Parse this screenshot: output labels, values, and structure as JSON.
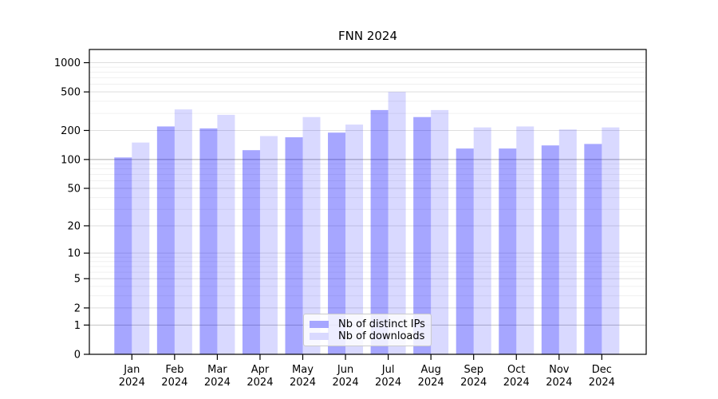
{
  "figure": {
    "title": "FNN 2024"
  },
  "chart_data": {
    "type": "bar",
    "title": "FNN 2024",
    "categories": [
      "Jan 2024",
      "Feb 2024",
      "Mar 2024",
      "Apr 2024",
      "May 2024",
      "Jun 2024",
      "Jul 2024",
      "Aug 2024",
      "Sep 2024",
      "Oct 2024",
      "Nov 2024",
      "Dec 2024"
    ],
    "series": [
      {
        "name": "Nb of distinct IPs",
        "color": "#a6a6ff",
        "bar_fill": "rgba(0,0,255,0.35)",
        "values": [
          105,
          220,
          210,
          125,
          170,
          190,
          325,
          275,
          130,
          130,
          140,
          145
        ]
      },
      {
        "name": "Nb of downloads",
        "color": "#d9d9ff",
        "bar_fill": "rgba(0,0,255,0.15)",
        "values": [
          150,
          330,
          290,
          175,
          275,
          230,
          500,
          325,
          215,
          220,
          205,
          215
        ]
      }
    ],
    "yscale": "symlog",
    "yticks": [
      0,
      1,
      2,
      5,
      10,
      20,
      50,
      100,
      200,
      500,
      1000
    ],
    "ylim": [
      0,
      1400
    ],
    "xlabel": "",
    "ylabel": "",
    "grid": "horizontal major + minor gridlines",
    "legend_position": "lower center"
  }
}
